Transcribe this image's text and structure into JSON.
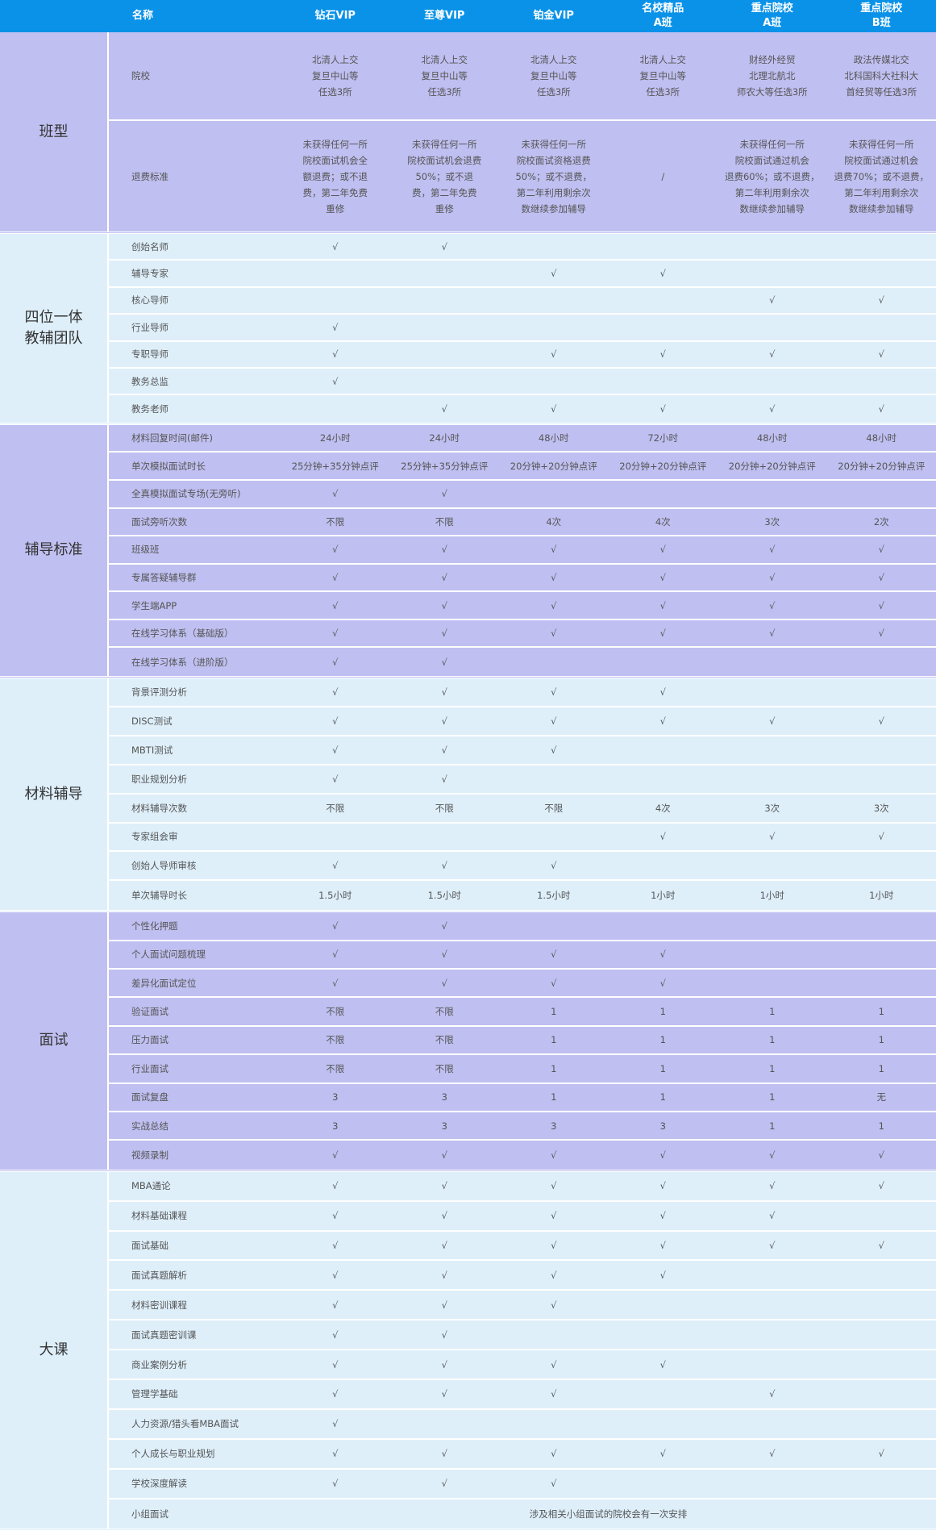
{
  "header": {
    "name": "名称",
    "columns": [
      "钻石VIP",
      "至尊VIP",
      "铂金VIP",
      "名校精品\nA班",
      "重点院校\nA班",
      "重点院校\nB班"
    ]
  },
  "colors": {
    "header": "#0a92e8",
    "purple_section": "#bfbff1",
    "light_section": "#deeffa"
  },
  "sections": [
    {
      "label": "班型",
      "rows": [
        {
          "item": "院校",
          "cells": [
            "北清人上交\n复旦中山等\n任选3所",
            "北清人上交\n复旦中山等\n任选3所",
            "北清人上交\n复旦中山等\n任选3所",
            "北清人上交\n复旦中山等\n任选3所",
            "财经外经贸\n北理北航北\n师农大等任选3所",
            "政法传媒北交\n北科国科大社科大\n首经贸等任选3所"
          ]
        },
        {
          "item": "退费标准",
          "cells": [
            "未获得任何一所\n院校面试机会全\n额退费；或不退\n费，第二年免费\n重修",
            "未获得任何一所\n院校面试机会退费\n50%；或不退\n费，第二年免费\n重修",
            "未获得任何一所\n院校面试资格退费\n50%；或不退费，\n第二年利用剩余次\n数继续参加辅导",
            "/",
            "未获得任何一所\n院校面试通过机会\n退费60%；或不退费，\n第二年利用剩余次\n数继续参加辅导",
            "未获得任何一所\n院校面试通过机会\n退费70%；或不退费，\n第二年利用剩余次\n数继续参加辅导"
          ]
        }
      ]
    },
    {
      "label": "四位一体\n教辅团队",
      "rows": [
        {
          "item": "创始名师",
          "cells": [
            "√",
            "√",
            "",
            "",
            "",
            ""
          ]
        },
        {
          "item": "辅导专家",
          "cells": [
            "",
            "",
            "√",
            "√",
            "",
            ""
          ]
        },
        {
          "item": "核心导师",
          "cells": [
            "",
            "",
            "",
            "",
            "√",
            "√"
          ]
        },
        {
          "item": "行业导师",
          "cells": [
            "√",
            "",
            "",
            "",
            "",
            ""
          ]
        },
        {
          "item": "专职导师",
          "cells": [
            "√",
            "",
            "√",
            "√",
            "√",
            "√"
          ]
        },
        {
          "item": "教务总监",
          "cells": [
            "√",
            "",
            "",
            "",
            "",
            ""
          ]
        },
        {
          "item": "教务老师",
          "cells": [
            "",
            "√",
            "√",
            "√",
            "√",
            "√"
          ]
        }
      ]
    },
    {
      "label": "辅导标准",
      "rows": [
        {
          "item": "材料回复时间(邮件)",
          "cells": [
            "24小时",
            "24小时",
            "48小时",
            "72小时",
            "48小时",
            "48小时"
          ]
        },
        {
          "item": "单次模拟面试时长",
          "cells": [
            "25分钟+35分钟点评",
            "25分钟+35分钟点评",
            "20分钟+20分钟点评",
            "20分钟+20分钟点评",
            "20分钟+20分钟点评",
            "20分钟+20分钟点评"
          ]
        },
        {
          "item": "全真模拟面试专场(无旁听)",
          "cells": [
            "√",
            "√",
            "",
            "",
            "",
            ""
          ]
        },
        {
          "item": "面试旁听次数",
          "cells": [
            "不限",
            "不限",
            "4次",
            "4次",
            "3次",
            "2次"
          ]
        },
        {
          "item": "班级班",
          "cells": [
            "√",
            "√",
            "√",
            "√",
            "√",
            "√"
          ]
        },
        {
          "item": "专属答疑辅导群",
          "cells": [
            "√",
            "√",
            "√",
            "√",
            "√",
            "√"
          ]
        },
        {
          "item": "学生端APP",
          "cells": [
            "√",
            "√",
            "√",
            "√",
            "√",
            "√"
          ]
        },
        {
          "item": "在线学习体系（基础版）",
          "cells": [
            "√",
            "√",
            "√",
            "√",
            "√",
            "√"
          ]
        },
        {
          "item": "在线学习体系（进阶版）",
          "cells": [
            "√",
            "√",
            "",
            "",
            "",
            ""
          ]
        }
      ]
    },
    {
      "label": "材料辅导",
      "rows": [
        {
          "item": "背景评测分析",
          "cells": [
            "√",
            "√",
            "√",
            "√",
            "",
            ""
          ]
        },
        {
          "item": "DISC测试",
          "cells": [
            "√",
            "√",
            "√",
            "√",
            "√",
            "√"
          ]
        },
        {
          "item": "MBTI测试",
          "cells": [
            "√",
            "√",
            "√",
            "",
            "",
            ""
          ]
        },
        {
          "item": "职业规划分析",
          "cells": [
            "√",
            "√",
            "",
            "",
            "",
            ""
          ]
        },
        {
          "item": "材料辅导次数",
          "cells": [
            "不限",
            "不限",
            "不限",
            "4次",
            "3次",
            "3次"
          ]
        },
        {
          "item": "专家组会审",
          "cells": [
            "",
            "",
            "",
            "√",
            "√",
            "√"
          ]
        },
        {
          "item": "创始人导师审核",
          "cells": [
            "√",
            "√",
            "√",
            "",
            "",
            ""
          ]
        },
        {
          "item": "单次辅导时长",
          "cells": [
            "1.5小时",
            "1.5小时",
            "1.5小时",
            "1小时",
            "1小时",
            "1小时"
          ]
        }
      ]
    },
    {
      "label": "面试",
      "rows": [
        {
          "item": "个性化押题",
          "cells": [
            "√",
            "√",
            "",
            "",
            "",
            ""
          ]
        },
        {
          "item": "个人面试问题梳理",
          "cells": [
            "√",
            "√",
            "√",
            "√",
            "",
            ""
          ]
        },
        {
          "item": "差异化面试定位",
          "cells": [
            "√",
            "√",
            "√",
            "√",
            "",
            ""
          ]
        },
        {
          "item": "验证面试",
          "cells": [
            "不限",
            "不限",
            "1",
            "1",
            "1",
            "1"
          ]
        },
        {
          "item": "压力面试",
          "cells": [
            "不限",
            "不限",
            "1",
            "1",
            "1",
            "1"
          ]
        },
        {
          "item": "行业面试",
          "cells": [
            "不限",
            "不限",
            "1",
            "1",
            "1",
            "1"
          ]
        },
        {
          "item": "面试复盘",
          "cells": [
            "3",
            "3",
            "1",
            "1",
            "1",
            "无"
          ]
        },
        {
          "item": "实战总结",
          "cells": [
            "3",
            "3",
            "3",
            "3",
            "1",
            "1"
          ]
        },
        {
          "item": "视频录制",
          "cells": [
            "√",
            "√",
            "√",
            "√",
            "√",
            "√"
          ]
        }
      ]
    },
    {
      "label": "大课",
      "rows": [
        {
          "item": "MBA通论",
          "cells": [
            "√",
            "√",
            "√",
            "√",
            "√",
            "√"
          ]
        },
        {
          "item": "材料基础课程",
          "cells": [
            "√",
            "√",
            "√",
            "√",
            "√",
            ""
          ]
        },
        {
          "item": "面试基础",
          "cells": [
            "√",
            "√",
            "√",
            "√",
            "√",
            "√"
          ]
        },
        {
          "item": "面试真题解析",
          "cells": [
            "√",
            "√",
            "√",
            "√",
            "",
            ""
          ]
        },
        {
          "item": "材料密训课程",
          "cells": [
            "√",
            "√",
            "√",
            "",
            "",
            ""
          ]
        },
        {
          "item": "面试真题密训课",
          "cells": [
            "√",
            "√",
            "",
            "",
            "",
            ""
          ]
        },
        {
          "item": "商业案例分析",
          "cells": [
            "√",
            "√",
            "√",
            "√",
            "",
            ""
          ]
        },
        {
          "item": "管理学基础",
          "cells": [
            "√",
            "√",
            "√",
            "",
            "√",
            ""
          ]
        },
        {
          "item": "人力资源/猎头看MBA面试",
          "cells": [
            "√",
            "",
            "",
            "",
            "",
            ""
          ]
        },
        {
          "item": "个人成长与职业规划",
          "cells": [
            "√",
            "√",
            "√",
            "√",
            "√",
            "√"
          ]
        },
        {
          "item": "学校深度解读",
          "cells": [
            "√",
            "√",
            "√",
            "",
            "",
            ""
          ]
        },
        {
          "item": "小组面试",
          "merged": "涉及相关小组面试的院校会有一次安排"
        }
      ]
    }
  ]
}
